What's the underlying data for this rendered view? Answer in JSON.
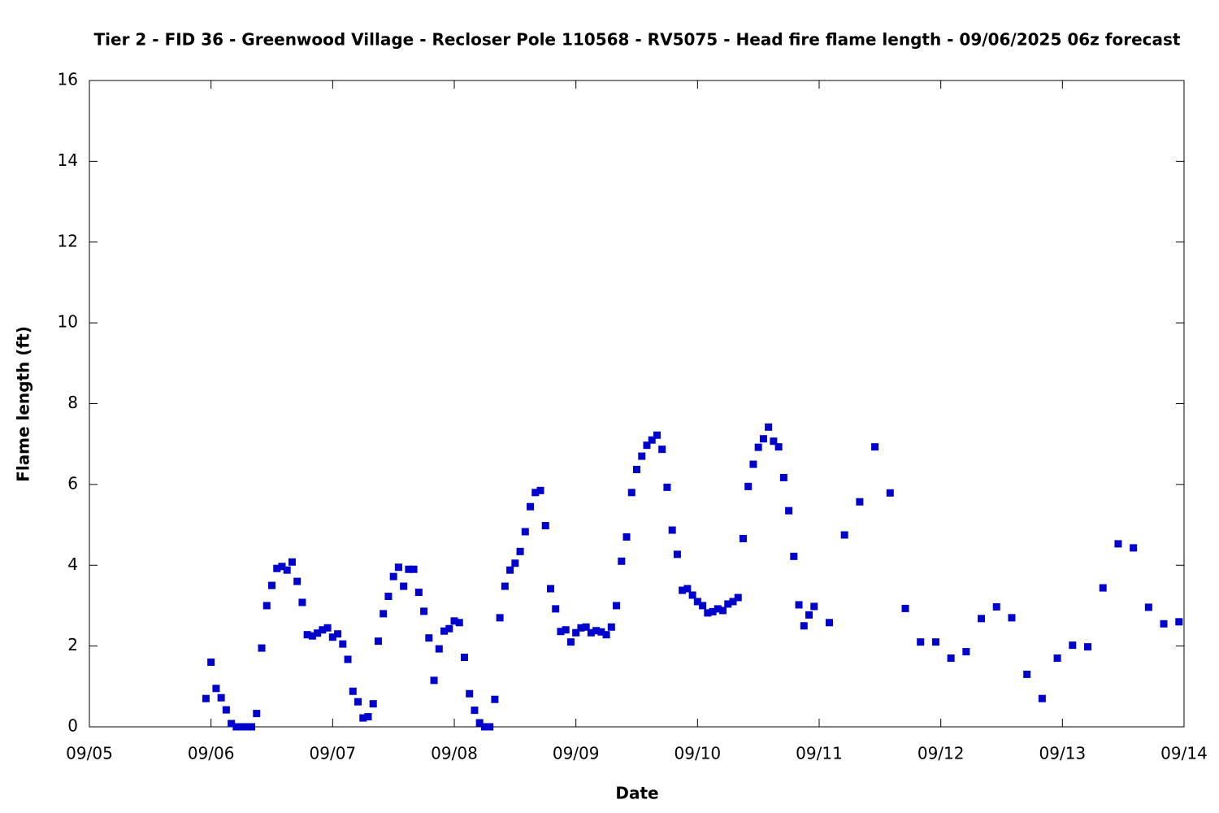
{
  "chart_data": {
    "type": "scatter",
    "title": "Tier 2 - FID 36 - Greenwood Village - Recloser Pole 110568 - RV5075 - Head fire flame length - 09/06/2025 06z forecast",
    "x_label": "Date",
    "y_label": "Flame length (ft)",
    "xlim": [
      0,
      216
    ],
    "xticks": [
      {
        "value": 0,
        "label": "09/05"
      },
      {
        "value": 24,
        "label": "09/06"
      },
      {
        "value": 48,
        "label": "09/07"
      },
      {
        "value": 72,
        "label": "09/08"
      },
      {
        "value": 96,
        "label": "09/09"
      },
      {
        "value": 120,
        "label": "09/10"
      },
      {
        "value": 144,
        "label": "09/11"
      },
      {
        "value": 168,
        "label": "09/12"
      },
      {
        "value": 192,
        "label": "09/13"
      },
      {
        "value": 216,
        "label": "09/14"
      }
    ],
    "ylim": [
      0,
      16
    ],
    "yticks": [
      0,
      2,
      4,
      6,
      8,
      10,
      12,
      14,
      16
    ],
    "grid": false,
    "series": [
      {
        "color": "#0000cc",
        "x": [
          23,
          24,
          25,
          26,
          27,
          28,
          29,
          30,
          31,
          32,
          33,
          34,
          35,
          36,
          37,
          38,
          39,
          40,
          41,
          42,
          43,
          44,
          45,
          46,
          47,
          48,
          49,
          50,
          51,
          52,
          53,
          54,
          55,
          56,
          57,
          58,
          59,
          60,
          61,
          62,
          63,
          64,
          65,
          66,
          67,
          68,
          69,
          70,
          71,
          72,
          73,
          74,
          75,
          76,
          77,
          78,
          79,
          80,
          81,
          82,
          83,
          84,
          85,
          86,
          87,
          88,
          89,
          90,
          91,
          92,
          93,
          94,
          95,
          96,
          97,
          98,
          99,
          100,
          101,
          102,
          103,
          104,
          105,
          106,
          107,
          108,
          109,
          110,
          111,
          112,
          113,
          114,
          115,
          116,
          117,
          118,
          119,
          120,
          121,
          122,
          123,
          124,
          125,
          126,
          127,
          128,
          129,
          130,
          131,
          132,
          133,
          134,
          135,
          136,
          137,
          138,
          139,
          140,
          141,
          142,
          143,
          146,
          149,
          152,
          155,
          158,
          161,
          164,
          167,
          170,
          173,
          176,
          179,
          182,
          185,
          188,
          191,
          194,
          197,
          200,
          203,
          206,
          209,
          212,
          215
        ],
        "values": [
          0.7,
          1.6,
          0.95,
          0.72,
          0.42,
          0.08,
          0,
          0,
          0,
          0,
          0.33,
          1.95,
          3.0,
          3.5,
          3.92,
          3.97,
          3.88,
          4.08,
          3.6,
          3.08,
          2.28,
          2.25,
          2.32,
          2.4,
          2.45,
          2.22,
          2.3,
          2.05,
          1.67,
          0.88,
          0.62,
          0.22,
          0.25,
          0.57,
          2.12,
          2.8,
          3.23,
          3.72,
          3.95,
          3.48,
          3.9,
          3.9,
          3.33,
          2.86,
          2.2,
          1.15,
          1.93,
          2.37,
          2.43,
          2.62,
          2.58,
          1.72,
          0.82,
          0.41,
          0.1,
          0,
          0,
          0.68,
          2.7,
          3.48,
          3.88,
          4.05,
          4.34,
          4.83,
          5.45,
          5.8,
          5.85,
          4.98,
          3.42,
          2.92,
          2.36,
          2.4,
          2.1,
          2.33,
          2.45,
          2.47,
          2.33,
          2.38,
          2.35,
          2.28,
          2.47,
          3.0,
          4.1,
          4.7,
          5.8,
          6.37,
          6.7,
          6.97,
          7.1,
          7.22,
          6.87,
          5.93,
          4.87,
          4.27,
          3.38,
          3.42,
          3.26,
          3.1,
          3.0,
          2.82,
          2.85,
          2.92,
          2.88,
          3.04,
          3.1,
          3.2,
          4.66,
          5.95,
          6.5,
          6.92,
          7.13,
          7.42,
          7.07,
          6.93,
          6.17,
          5.35,
          4.22,
          3.02,
          2.5,
          2.77,
          2.98,
          2.58,
          4.75,
          5.57,
          6.93,
          5.79,
          2.93,
          2.1,
          2.1,
          1.7,
          1.86,
          2.68,
          2.97,
          2.7,
          1.3,
          0.7,
          1.7,
          2.02,
          1.98,
          3.44,
          4.53,
          4.43,
          2.96,
          2.55,
          2.6
        ]
      }
    ]
  }
}
